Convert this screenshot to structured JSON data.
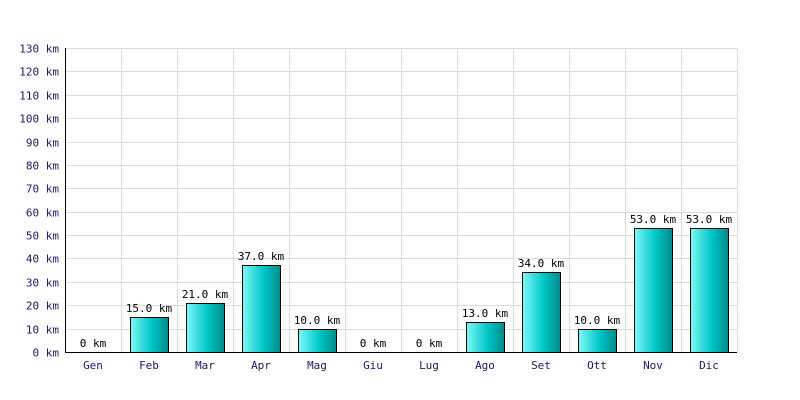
{
  "chart_data": {
    "type": "bar",
    "title": "",
    "xlabel": "",
    "ylabel": "",
    "unit": "km",
    "categories": [
      "Gen",
      "Feb",
      "Mar",
      "Apr",
      "Mag",
      "Giu",
      "Lug",
      "Ago",
      "Set",
      "Ott",
      "Nov",
      "Dic"
    ],
    "values": [
      0,
      15,
      21,
      37,
      10,
      0,
      0,
      13,
      34,
      10,
      53,
      53
    ],
    "data_labels": [
      "0 km",
      "15.0 km",
      "21.0 km",
      "37.0 km",
      "10.0 km",
      "0 km",
      "0 km",
      "13.0 km",
      "34.0 km",
      "10.0 km",
      "53.0 km",
      "53.0 km"
    ],
    "y_ticks": [
      0,
      10,
      20,
      30,
      40,
      50,
      60,
      70,
      80,
      90,
      100,
      110,
      120,
      130
    ],
    "y_tick_labels": [
      "0 km",
      "10 km",
      "20 km",
      "30 km",
      "40 km",
      "50 km",
      "60 km",
      "70 km",
      "80 km",
      "90 km",
      "100 km",
      "110 km",
      "120 km",
      "130 km"
    ],
    "ylim": [
      0,
      130
    ],
    "grid": true,
    "legend": "none",
    "colors": {
      "bar_light": "#7ff7f7",
      "bar_mid": "#00c8c8",
      "bar_dark": "#008a8a",
      "grid": "#dcdcdc",
      "tick_text": "#1a1a66"
    }
  }
}
